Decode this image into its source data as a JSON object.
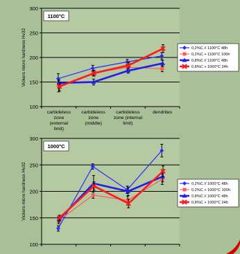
{
  "colors": {
    "background": "#a9bf97",
    "plot_area": "#b5c9a3",
    "legend_bg": "#ffffff"
  },
  "chart_data": [
    {
      "type": "line",
      "title": "1100°C",
      "ylabel": "Vickers micro hardness Hv32",
      "ylim": [
        100,
        300
      ],
      "yticks": [
        100,
        150,
        200,
        250,
        300
      ],
      "categories": [
        "carbideless zone (external limit)",
        "carbideless zone (middle)",
        "carbideless zone (internal limit)",
        "dendrites"
      ],
      "category_lines": [
        [
          "carbideless",
          "zone",
          "(external",
          "limit)"
        ],
        [
          "carbideless",
          "zone",
          "(middle)"
        ],
        [
          "carbideless",
          "zone (internal",
          "limit)"
        ],
        [
          "dendrites"
        ]
      ],
      "grid": true,
      "legend_position": "right",
      "series": [
        {
          "name": "0,2%C // 1100°C 48h",
          "values": [
            157,
            178,
            191,
            203
          ],
          "err": [
            10,
            6,
            5,
            7
          ],
          "color": "#2a2aff",
          "width": 1.2,
          "marker": "diamond"
        },
        {
          "name": "0,2%C + 1100°C 100h",
          "values": [
            142,
            168,
            180,
            177
          ],
          "err": [
            12,
            5,
            5,
            6
          ],
          "color": "#ff5a5a",
          "width": 1.2,
          "marker": "square"
        },
        {
          "name": "0,8%C // 1100°C 48h",
          "values": [
            148,
            150,
            173,
            188
          ],
          "err": [
            6,
            6,
            5,
            6
          ],
          "color": "#1d1dee",
          "width": 2.6,
          "marker": "triangle"
        },
        {
          "name": "0,8%C + 1000°C 24h",
          "values": [
            141,
            168,
            184,
            218
          ],
          "err": [
            9,
            6,
            6,
            8
          ],
          "color": "#ff1a1a",
          "width": 2.6,
          "marker": "x"
        }
      ]
    },
    {
      "type": "line",
      "title": "1000°C",
      "ylabel": "Vickers micro hardness Hv32",
      "ylim": [
        100,
        300
      ],
      "yticks": [
        100,
        150,
        200,
        250,
        300
      ],
      "categories": [
        "",
        "",
        "",
        ""
      ],
      "grid": true,
      "legend_position": "right",
      "series": [
        {
          "name": "0,2%C // 1000°C 48h",
          "values": [
            130,
            247,
            203,
            277
          ],
          "err": [
            5,
            5,
            7,
            12
          ],
          "color": "#2a2aff",
          "width": 1.2,
          "marker": "diamond"
        },
        {
          "name": "0,2%C + 1000°C 100h",
          "values": [
            145,
            193,
            183,
            223
          ],
          "err": [
            6,
            6,
            8,
            10
          ],
          "color": "#ff5a5a",
          "width": 1.2,
          "marker": "square"
        },
        {
          "name": "0,8%C // 1000°C 48h",
          "values": [
            147,
            215,
            200,
            228
          ],
          "err": [
            5,
            15,
            8,
            10
          ],
          "color": "#1d1dee",
          "width": 2.6,
          "marker": "triangle"
        },
        {
          "name": "0,8%C + 1000°C 24h",
          "values": [
            150,
            210,
            177,
            238
          ],
          "err": [
            5,
            8,
            8,
            10
          ],
          "color": "#ff1a1a",
          "width": 2.6,
          "marker": "x"
        }
      ]
    }
  ]
}
